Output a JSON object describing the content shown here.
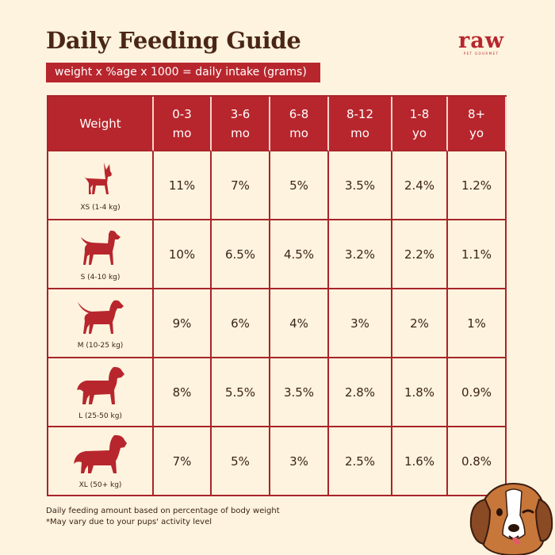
{
  "title": "Daily Feeding Guide",
  "formula": "weight x %age x 1000 = daily intake (grams)",
  "brand": {
    "name": "raw",
    "tagline": "PET GOURMET"
  },
  "table": {
    "headers": [
      "Weight",
      "0-3 mo",
      "3-6 mo",
      "6-8 mo",
      "8-12 mo",
      "1-8 yo",
      "8+ yo"
    ],
    "rows": [
      {
        "size": "XS (1-4 kg)",
        "icon": "small-dog-icon",
        "values": [
          "11%",
          "7%",
          "5%",
          "3.5%",
          "2.4%",
          "1.2%"
        ]
      },
      {
        "size": "S (4-10 kg)",
        "icon": "terrier-dog-icon",
        "values": [
          "10%",
          "6.5%",
          "4.5%",
          "3.2%",
          "2.2%",
          "1.1%"
        ]
      },
      {
        "size": "M (10-25 kg)",
        "icon": "medium-dog-icon",
        "values": [
          "9%",
          "6%",
          "4%",
          "3%",
          "2%",
          "1%"
        ]
      },
      {
        "size": "L (25-50 kg)",
        "icon": "large-dog-icon",
        "values": [
          "8%",
          "5.5%",
          "3.5%",
          "2.8%",
          "1.8%",
          "0.9%"
        ]
      },
      {
        "size": "XL (50+ kg)",
        "icon": "extra-large-dog-icon",
        "values": [
          "7%",
          "5%",
          "3%",
          "2.5%",
          "1.6%",
          "0.8%"
        ]
      }
    ]
  },
  "notes": [
    "Daily feeding amount based on percentage of body weight",
    "*May vary due to your pups' activity level"
  ],
  "colors": {
    "accent": "#b8262d",
    "background": "#fdf3de",
    "title": "#4a2616"
  }
}
